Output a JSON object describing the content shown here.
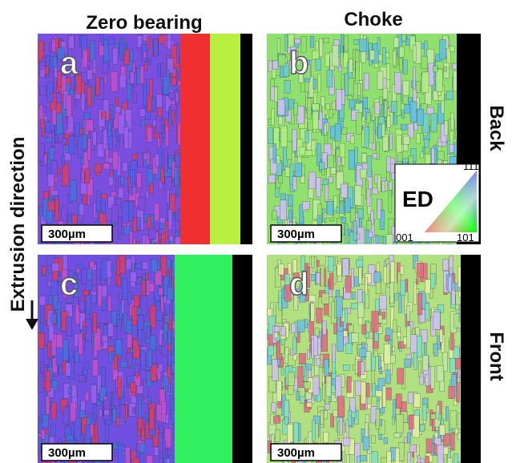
{
  "columns": [
    "Zero bearing",
    "Choke"
  ],
  "rows": [
    "Back",
    "Front"
  ],
  "axis_label": "Extrusion direction",
  "panels": [
    {
      "label": "a",
      "scale_bar": "300µm"
    },
    {
      "label": "b",
      "scale_bar": "300µm"
    },
    {
      "label": "c",
      "scale_bar": "300µm"
    },
    {
      "label": "d",
      "scale_bar": "300µm"
    }
  ],
  "legend": {
    "title": "ED",
    "corners": [
      "111",
      "001",
      "101"
    ]
  }
}
